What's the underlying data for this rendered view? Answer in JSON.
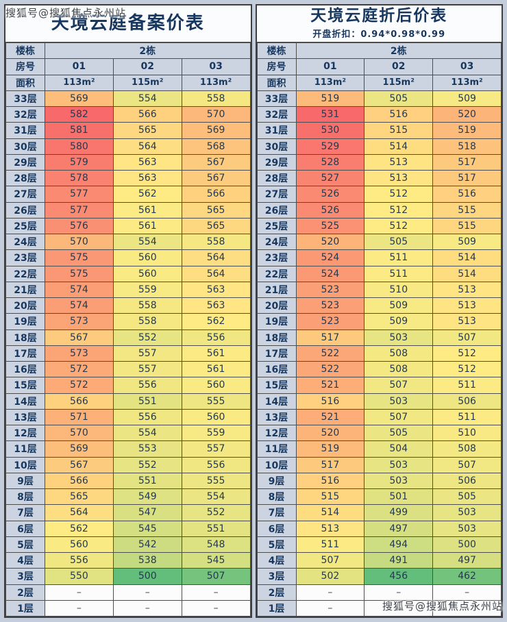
{
  "watermark": {
    "text": "搜狐号@搜狐焦点永州站"
  },
  "heatmap": {
    "min_color": "#63BE7B",
    "mid_color": "#FFEB84",
    "max_color": "#F8696B"
  },
  "tables": [
    {
      "title": "天境云庭备案价表",
      "subtitle": "",
      "building_label": "楼栋",
      "building_value": "2栋",
      "room_label": "房号",
      "rooms": [
        "01",
        "02",
        "03"
      ],
      "area_label": "面积",
      "areas": [
        "113m²",
        "115m²",
        "113m²"
      ],
      "floors": [
        {
          "floor": "33层",
          "values": [
            "569",
            "554",
            "558"
          ]
        },
        {
          "floor": "32层",
          "values": [
            "582",
            "566",
            "570"
          ]
        },
        {
          "floor": "31层",
          "values": [
            "581",
            "565",
            "569"
          ]
        },
        {
          "floor": "30层",
          "values": [
            "580",
            "564",
            "568"
          ]
        },
        {
          "floor": "29层",
          "values": [
            "579",
            "563",
            "567"
          ]
        },
        {
          "floor": "28层",
          "values": [
            "578",
            "563",
            "567"
          ]
        },
        {
          "floor": "27层",
          "values": [
            "577",
            "562",
            "566"
          ]
        },
        {
          "floor": "26层",
          "values": [
            "577",
            "561",
            "565"
          ]
        },
        {
          "floor": "25层",
          "values": [
            "576",
            "561",
            "565"
          ]
        },
        {
          "floor": "24层",
          "values": [
            "570",
            "554",
            "558"
          ]
        },
        {
          "floor": "23层",
          "values": [
            "575",
            "560",
            "564"
          ]
        },
        {
          "floor": "22层",
          "values": [
            "575",
            "560",
            "564"
          ]
        },
        {
          "floor": "21层",
          "values": [
            "574",
            "559",
            "563"
          ]
        },
        {
          "floor": "20层",
          "values": [
            "574",
            "558",
            "563"
          ]
        },
        {
          "floor": "19层",
          "values": [
            "573",
            "558",
            "562"
          ]
        },
        {
          "floor": "18层",
          "values": [
            "567",
            "552",
            "556"
          ]
        },
        {
          "floor": "17层",
          "values": [
            "573",
            "557",
            "561"
          ]
        },
        {
          "floor": "16层",
          "values": [
            "572",
            "557",
            "561"
          ]
        },
        {
          "floor": "15层",
          "values": [
            "572",
            "556",
            "560"
          ]
        },
        {
          "floor": "14层",
          "values": [
            "566",
            "551",
            "555"
          ]
        },
        {
          "floor": "13层",
          "values": [
            "571",
            "556",
            "560"
          ]
        },
        {
          "floor": "12层",
          "values": [
            "570",
            "554",
            "559"
          ]
        },
        {
          "floor": "11层",
          "values": [
            "569",
            "553",
            "557"
          ]
        },
        {
          "floor": "10层",
          "values": [
            "567",
            "552",
            "556"
          ]
        },
        {
          "floor": "9层",
          "values": [
            "566",
            "551",
            "555"
          ]
        },
        {
          "floor": "8层",
          "values": [
            "565",
            "549",
            "554"
          ]
        },
        {
          "floor": "7层",
          "values": [
            "564",
            "547",
            "552"
          ]
        },
        {
          "floor": "6层",
          "values": [
            "562",
            "545",
            "551"
          ]
        },
        {
          "floor": "5层",
          "values": [
            "560",
            "542",
            "548"
          ]
        },
        {
          "floor": "4层",
          "values": [
            "556",
            "538",
            "545"
          ]
        },
        {
          "floor": "3层",
          "values": [
            "550",
            "500",
            "507"
          ]
        },
        {
          "floor": "2层",
          "values": [
            "–",
            "–",
            "–"
          ]
        },
        {
          "floor": "1层",
          "values": [
            "–",
            "–",
            "–"
          ]
        }
      ]
    },
    {
      "title": "天境云庭折后价表",
      "subtitle": "开盘折扣：0.94*0.98*0.99",
      "building_label": "楼栋",
      "building_value": "2栋",
      "room_label": "房号",
      "rooms": [
        "01",
        "02",
        "03"
      ],
      "area_label": "面积",
      "areas": [
        "113m²",
        "115m²",
        "113m²"
      ],
      "floors": [
        {
          "floor": "33层",
          "values": [
            "519",
            "505",
            "509"
          ]
        },
        {
          "floor": "32层",
          "values": [
            "531",
            "516",
            "520"
          ]
        },
        {
          "floor": "31层",
          "values": [
            "530",
            "515",
            "519"
          ]
        },
        {
          "floor": "30层",
          "values": [
            "529",
            "514",
            "518"
          ]
        },
        {
          "floor": "29层",
          "values": [
            "528",
            "513",
            "517"
          ]
        },
        {
          "floor": "28层",
          "values": [
            "527",
            "513",
            "517"
          ]
        },
        {
          "floor": "27层",
          "values": [
            "526",
            "512",
            "516"
          ]
        },
        {
          "floor": "26层",
          "values": [
            "526",
            "512",
            "515"
          ]
        },
        {
          "floor": "25层",
          "values": [
            "525",
            "512",
            "515"
          ]
        },
        {
          "floor": "24层",
          "values": [
            "520",
            "505",
            "509"
          ]
        },
        {
          "floor": "23层",
          "values": [
            "524",
            "511",
            "514"
          ]
        },
        {
          "floor": "22层",
          "values": [
            "524",
            "511",
            "514"
          ]
        },
        {
          "floor": "21层",
          "values": [
            "523",
            "510",
            "513"
          ]
        },
        {
          "floor": "20层",
          "values": [
            "523",
            "509",
            "513"
          ]
        },
        {
          "floor": "19层",
          "values": [
            "523",
            "509",
            "513"
          ]
        },
        {
          "floor": "18层",
          "values": [
            "517",
            "503",
            "507"
          ]
        },
        {
          "floor": "17层",
          "values": [
            "522",
            "508",
            "512"
          ]
        },
        {
          "floor": "16层",
          "values": [
            "522",
            "508",
            "512"
          ]
        },
        {
          "floor": "15层",
          "values": [
            "521",
            "507",
            "511"
          ]
        },
        {
          "floor": "14层",
          "values": [
            "516",
            "503",
            "506"
          ]
        },
        {
          "floor": "13层",
          "values": [
            "521",
            "507",
            "511"
          ]
        },
        {
          "floor": "12层",
          "values": [
            "520",
            "505",
            "510"
          ]
        },
        {
          "floor": "11层",
          "values": [
            "519",
            "504",
            "508"
          ]
        },
        {
          "floor": "10层",
          "values": [
            "517",
            "503",
            "507"
          ]
        },
        {
          "floor": "9层",
          "values": [
            "516",
            "503",
            "506"
          ]
        },
        {
          "floor": "8层",
          "values": [
            "515",
            "501",
            "505"
          ]
        },
        {
          "floor": "7层",
          "values": [
            "514",
            "499",
            "503"
          ]
        },
        {
          "floor": "6层",
          "values": [
            "513",
            "497",
            "503"
          ]
        },
        {
          "floor": "5层",
          "values": [
            "511",
            "494",
            "500"
          ]
        },
        {
          "floor": "4层",
          "values": [
            "507",
            "491",
            "497"
          ]
        },
        {
          "floor": "3层",
          "values": [
            "502",
            "456",
            "462"
          ]
        },
        {
          "floor": "2层",
          "values": [
            "–",
            "–",
            "–"
          ]
        },
        {
          "floor": "1层",
          "values": [
            "–",
            "–",
            "–"
          ]
        }
      ]
    }
  ]
}
